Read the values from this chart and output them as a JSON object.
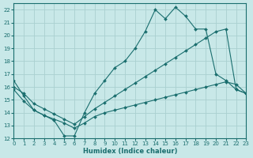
{
  "xlabel": "Humidex (Indice chaleur)",
  "bg_color": "#c8e8e8",
  "grid_color": "#aad0d0",
  "line_color": "#1a6e6e",
  "xlim": [
    0,
    23
  ],
  "ylim": [
    12,
    22.5
  ],
  "xticks": [
    0,
    1,
    2,
    3,
    4,
    5,
    6,
    7,
    8,
    9,
    10,
    11,
    12,
    13,
    14,
    15,
    16,
    17,
    18,
    19,
    20,
    21,
    22,
    23
  ],
  "yticks": [
    12,
    13,
    14,
    15,
    16,
    17,
    18,
    19,
    20,
    21,
    22
  ],
  "line1_x": [
    0,
    1,
    2,
    3,
    4,
    5,
    6,
    7,
    8,
    9,
    10,
    11,
    12,
    13,
    14,
    15,
    16,
    17,
    18,
    19,
    20,
    21,
    22,
    23
  ],
  "line1_y": [
    16.5,
    15.3,
    14.2,
    13.8,
    13.4,
    12.2,
    12.2,
    14.0,
    15.5,
    16.5,
    17.5,
    18.0,
    19.0,
    20.3,
    22.0,
    21.3,
    22.2,
    21.5,
    20.5,
    20.5,
    17.0,
    16.5,
    15.8,
    15.5
  ],
  "line2_x": [
    0,
    1,
    2,
    3,
    4,
    5,
    6,
    7,
    8,
    9,
    10,
    11,
    12,
    13,
    14,
    15,
    16,
    17,
    18,
    19,
    20,
    21,
    22,
    23
  ],
  "line2_y": [
    16.0,
    15.5,
    14.7,
    14.3,
    13.9,
    13.5,
    13.1,
    13.7,
    14.3,
    14.8,
    15.3,
    15.8,
    16.3,
    16.8,
    17.3,
    17.8,
    18.3,
    18.8,
    19.3,
    19.8,
    20.3,
    20.5,
    15.8,
    15.5
  ],
  "line3_x": [
    0,
    1,
    2,
    3,
    4,
    5,
    6,
    7,
    8,
    9,
    10,
    11,
    12,
    13,
    14,
    15,
    16,
    17,
    18,
    19,
    20,
    21,
    22,
    23
  ],
  "line3_y": [
    15.8,
    14.9,
    14.2,
    13.8,
    13.5,
    13.2,
    12.8,
    13.2,
    13.7,
    14.0,
    14.2,
    14.4,
    14.6,
    14.8,
    15.0,
    15.2,
    15.4,
    15.6,
    15.8,
    16.0,
    16.2,
    16.4,
    16.2,
    15.5
  ]
}
